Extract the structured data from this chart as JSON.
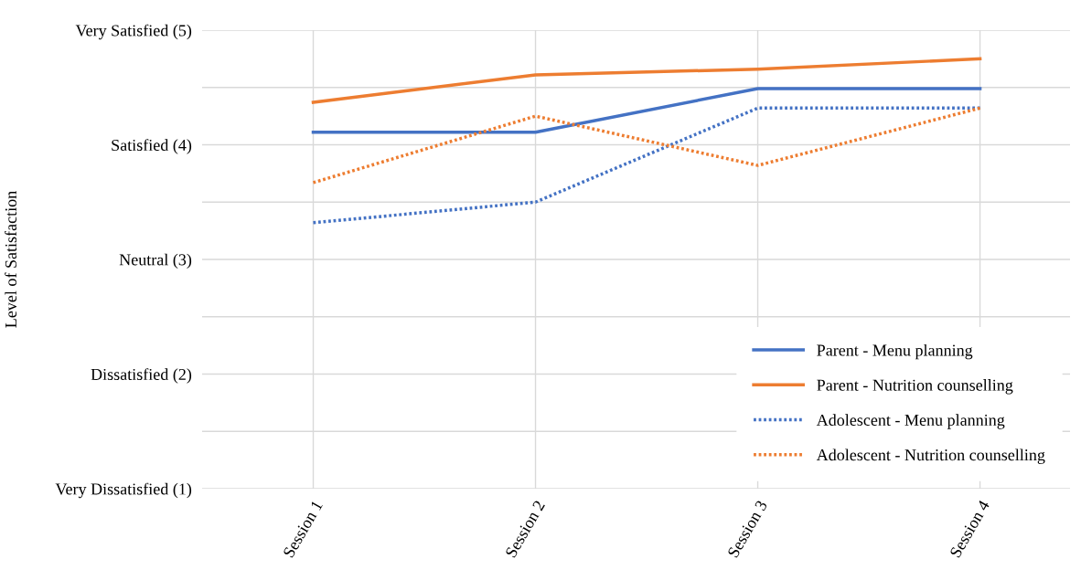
{
  "chart_data": {
    "type": "line",
    "ylabel": "Level of Satisfaction",
    "categories": [
      "Session 1",
      "Session 2",
      "Session 3",
      "Session 4"
    ],
    "series": [
      {
        "name": "Parent - Menu planning",
        "color": "#4472c4",
        "line_style": "solid",
        "values": [
          4.11,
          4.11,
          4.49,
          4.49
        ]
      },
      {
        "name": "Parent - Nutrition counselling",
        "color": "#ed7d31",
        "line_style": "solid",
        "values": [
          4.37,
          4.61,
          4.66,
          4.75
        ]
      },
      {
        "name": "Adolescent - Menu planning",
        "color": "#4472c4",
        "line_style": "dotted",
        "values": [
          3.32,
          3.5,
          4.32,
          4.32
        ]
      },
      {
        "name": "Adolescent - Nutrition counselling",
        "color": "#ed7d31",
        "line_style": "dotted",
        "values": [
          3.67,
          4.25,
          3.82,
          4.32
        ]
      }
    ],
    "ylim": [
      1,
      5
    ],
    "yticks": [
      {
        "value": 1,
        "label": "Very Dissatisfied (1)"
      },
      {
        "value": 1.5,
        "label": null
      },
      {
        "value": 2,
        "label": "Dissatisfied (2)"
      },
      {
        "value": 2.5,
        "label": null
      },
      {
        "value": 3,
        "label": "Neutral (3)"
      },
      {
        "value": 3.5,
        "label": null
      },
      {
        "value": 4,
        "label": "Satisfied (4)"
      },
      {
        "value": 4.5,
        "label": null
      },
      {
        "value": 5,
        "label": "Very Satisfied (5)"
      }
    ],
    "grid": true,
    "legend": "bottom right"
  }
}
